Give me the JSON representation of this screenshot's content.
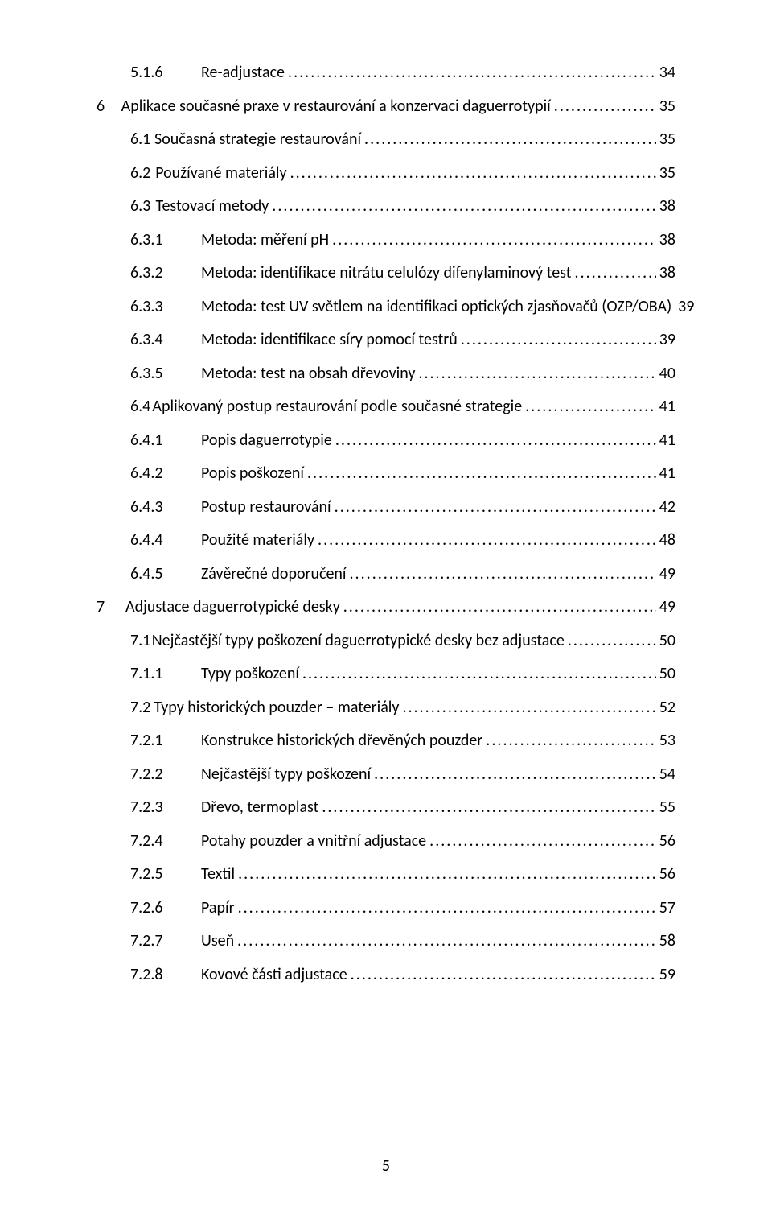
{
  "page_number": "5",
  "font": {
    "family": "Calibri",
    "size_pt": 11,
    "color": "#000000",
    "background": "#ffffff"
  },
  "toc": [
    {
      "level": "sub",
      "number": "5.1.6",
      "title": "Re-adjustace",
      "page": "34"
    },
    {
      "level": "chapter",
      "number": "6",
      "title": "Aplikace současné praxe v restaurování a konzervaci daguerrotypií",
      "page": "35"
    },
    {
      "level": "section",
      "number": "6.1",
      "title": "Současná strategie restaurování",
      "page": "35"
    },
    {
      "level": "section",
      "number": "6.2",
      "title": "Používané materiály",
      "page": "35"
    },
    {
      "level": "section",
      "number": "6.3",
      "title": "Testovací metody",
      "page": "38"
    },
    {
      "level": "sub",
      "number": "6.3.1",
      "title": "Metoda: měření pH",
      "page": "38"
    },
    {
      "level": "sub",
      "number": "6.3.2",
      "title": "Metoda: identifikace nitrátu celulózy difenylaminový test",
      "page": "38"
    },
    {
      "level": "sub",
      "number": "6.3.3",
      "title": "Metoda: test UV světlem na identifikaci optických zjasňovačů (OZP/OBA)",
      "page": "39"
    },
    {
      "level": "sub",
      "number": "6.3.4",
      "title": "Metoda: identifikace síry pomocí testrů",
      "page": "39"
    },
    {
      "level": "sub",
      "number": "6.3.5",
      "title": "Metoda: test na obsah dřevoviny",
      "page": "40"
    },
    {
      "level": "section",
      "number": "6.4",
      "title": "Aplikovaný postup restaurování podle současné strategie",
      "page": "41"
    },
    {
      "level": "sub",
      "number": "6.4.1",
      "title": "Popis daguerrotypie",
      "page": "41"
    },
    {
      "level": "sub",
      "number": "6.4.2",
      "title": "Popis poškození",
      "page": "41"
    },
    {
      "level": "sub",
      "number": "6.4.3",
      "title": "Postup restaurování",
      "page": "42"
    },
    {
      "level": "sub",
      "number": "6.4.4",
      "title": "Použité materiály",
      "page": "48"
    },
    {
      "level": "sub",
      "number": "6.4.5",
      "title": "Závěrečné doporučení",
      "page": "49"
    },
    {
      "level": "chapter",
      "number": "7",
      "title": "Adjustace daguerrotypické desky",
      "page": "49"
    },
    {
      "level": "section",
      "number": "7.1",
      "title": "Nejčastější typy poškození daguerrotypické desky bez adjustace",
      "page": "50"
    },
    {
      "level": "sub",
      "number": "7.1.1",
      "title": "Typy poškození",
      "page": "50"
    },
    {
      "level": "section",
      "number": "7.2",
      "title": "Typy historických pouzder – materiály",
      "page": "52"
    },
    {
      "level": "sub",
      "number": "7.2.1",
      "title": "Konstrukce historických dřevěných pouzder",
      "page": "53"
    },
    {
      "level": "sub",
      "number": "7.2.2",
      "title": "Nejčastější typy poškození",
      "page": "54"
    },
    {
      "level": "sub",
      "number": "7.2.3",
      "title": "Dřevo, termoplast",
      "page": "55"
    },
    {
      "level": "sub",
      "number": "7.2.4",
      "title": "Potahy pouzder a vnitřní adjustace",
      "page": "56"
    },
    {
      "level": "sub",
      "number": "7.2.5",
      "title": "Textil",
      "page": "56"
    },
    {
      "level": "sub",
      "number": "7.2.6",
      "title": "Papír",
      "page": "57"
    },
    {
      "level": "sub",
      "number": "7.2.7",
      "title": "Useň",
      "page": "58"
    },
    {
      "level": "sub",
      "number": "7.2.8",
      "title": "Kovové části adjustace",
      "page": "59"
    }
  ]
}
